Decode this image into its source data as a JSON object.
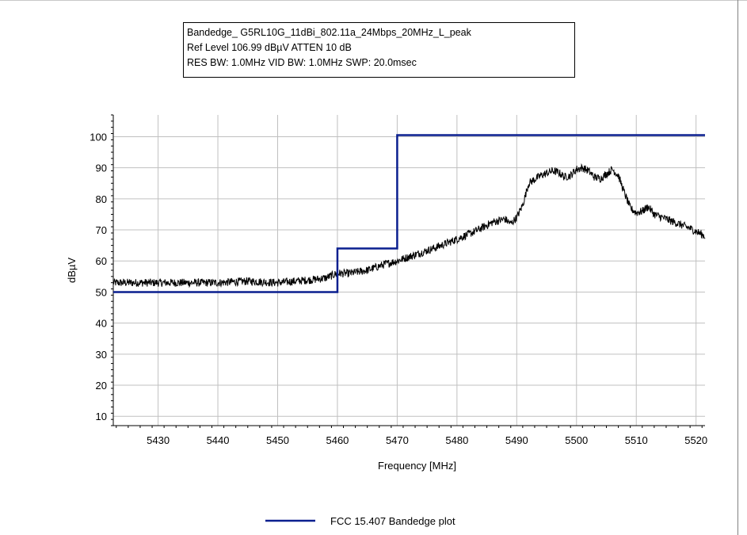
{
  "header_lines": [
    "Bandedge_ G5RL10G_11dBi_802.11a_24Mbps_20MHz_L_peak",
    "Ref Level 106.99 dBµV    ATTEN 10 dB",
    "RES BW: 1.0MHz  VID BW: 1.0MHz  SWP: 20.0msec"
  ],
  "chart_data": {
    "type": "line",
    "xlabel": "Frequency [MHz]",
    "ylabel": "dBµV",
    "xlim": [
      5422.5,
      5521.5
    ],
    "ylim": [
      7,
      107
    ],
    "grid": true,
    "x_ticks": [
      5430,
      5440,
      5450,
      5460,
      5470,
      5480,
      5490,
      5500,
      5510,
      5520
    ],
    "y_ticks": [
      10,
      20,
      30,
      40,
      50,
      60,
      70,
      80,
      90,
      100
    ],
    "legend": {
      "position": "bottom-center",
      "entries": [
        "FCC 15.407  Bandedge plot"
      ]
    },
    "colors": {
      "limit_line": "#0a1f8f",
      "measured_trace": "#000000",
      "grid": "#c0c0c0"
    },
    "series": [
      {
        "name": "FCC 15.407  Bandedge plot",
        "style": "step",
        "x": [
          5422.5,
          5460,
          5460,
          5470,
          5470,
          5521.5
        ],
        "y": [
          50,
          50,
          64,
          64,
          100.5,
          100.5
        ]
      },
      {
        "style": "noisy-line",
        "x": [
          5422.5,
          5426,
          5430,
          5435,
          5440,
          5445,
          5450,
          5453,
          5456,
          5458,
          5460,
          5462,
          5465,
          5468,
          5470,
          5473,
          5476,
          5480,
          5483,
          5486,
          5488,
          5489,
          5490,
          5491,
          5492,
          5494,
          5496,
          5497,
          5498,
          5499,
          5500,
          5501,
          5502,
          5503,
          5504,
          5505,
          5506,
          5507,
          5508,
          5509,
          5510,
          5511,
          5512,
          5513,
          5515,
          5517,
          5519,
          5521.5
        ],
        "y": [
          53,
          53,
          53,
          53,
          53,
          53.5,
          53,
          53.5,
          54,
          54.5,
          56,
          56,
          57,
          59,
          60,
          62,
          64,
          67,
          69.5,
          72.5,
          73.5,
          72,
          74,
          78,
          85,
          87.5,
          89,
          88.5,
          87,
          87.5,
          89.5,
          90,
          89,
          87,
          86.5,
          88,
          89.5,
          87.5,
          82,
          77,
          75.5,
          76,
          77.5,
          75,
          73.5,
          72,
          70.5,
          68
        ]
      }
    ]
  }
}
